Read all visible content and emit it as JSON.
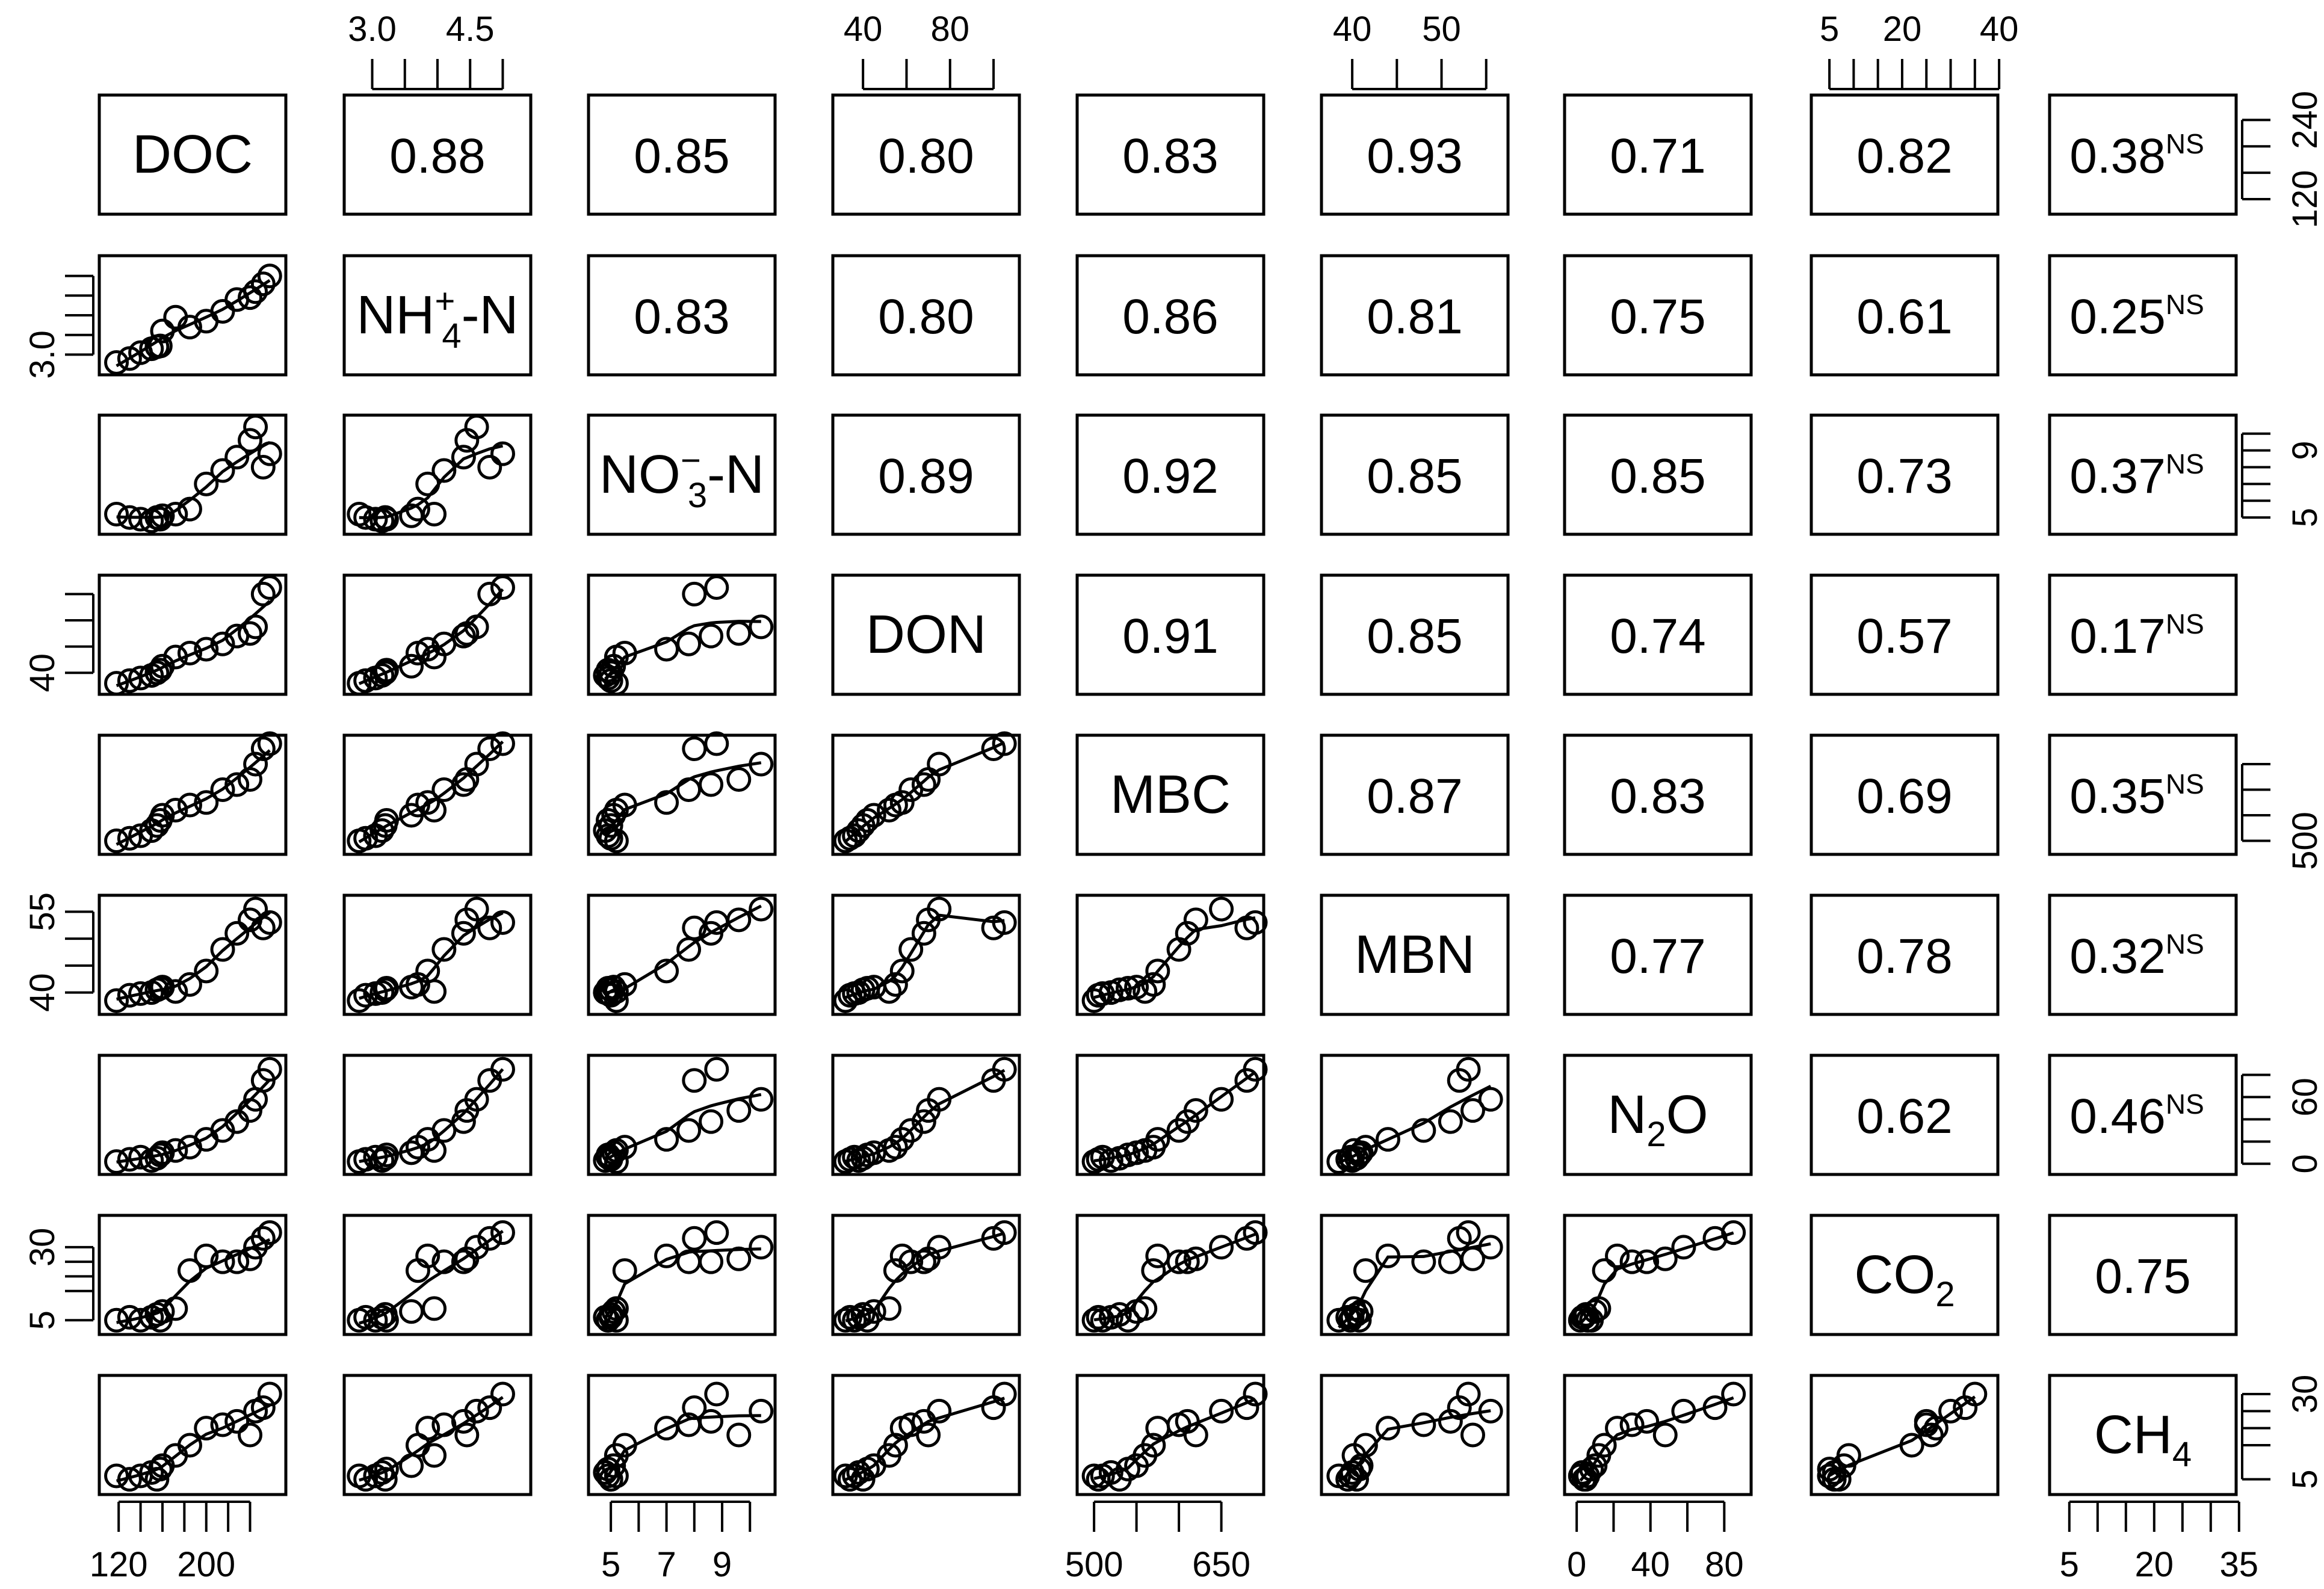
{
  "chart_data": {
    "type": "scatter",
    "variables": [
      {
        "name": "DOC",
        "base": "DOC",
        "sub": "",
        "sup": "",
        "suffix": ""
      },
      {
        "name": "NH4+-N",
        "base": "NH",
        "sub": "4",
        "sup": "+",
        "suffix": "-N"
      },
      {
        "name": "NO3−-N",
        "base": "NO",
        "sub": "3",
        "sup": "−",
        "suffix": "-N"
      },
      {
        "name": "DON",
        "base": "DON",
        "sub": "",
        "sup": "",
        "suffix": ""
      },
      {
        "name": "MBC",
        "base": "MBC",
        "sub": "",
        "sup": "",
        "suffix": ""
      },
      {
        "name": "MBN",
        "base": "MBN",
        "sub": "",
        "sup": "",
        "suffix": ""
      },
      {
        "name": "N2O",
        "base": "N",
        "sub": "2",
        "sup": "",
        "suffix": "O"
      },
      {
        "name": "CO2",
        "base": "CO",
        "sub": "2",
        "sup": "",
        "suffix": ""
      },
      {
        "name": "CH4",
        "base": "CH",
        "sub": "4",
        "sup": "",
        "suffix": ""
      }
    ],
    "ranges": [
      [
        110,
        265
      ],
      [
        2.7,
        5.3
      ],
      [
        4.5,
        10.6
      ],
      [
        30,
        108
      ],
      [
        490,
        690
      ],
      [
        37.5,
        56.5
      ],
      [
        -2,
        90
      ],
      [
        3,
        38
      ],
      [
        3,
        33
      ]
    ],
    "ticks": {
      "top": {
        "1": {
          "major": [
            3.0,
            4.5
          ],
          "minor": [
            3.5,
            4.0,
            5.0
          ],
          "labels": [
            "3.0",
            "4.5"
          ]
        },
        "3": {
          "major": [
            40,
            80
          ],
          "minor": [
            60,
            100
          ],
          "labels": [
            "40",
            "80"
          ]
        },
        "5": {
          "major": [
            40,
            50
          ],
          "minor": [
            45,
            55
          ],
          "labels": [
            "40",
            "50"
          ]
        },
        "7": {
          "major": [
            5,
            20,
            40
          ],
          "minor": [
            10,
            15,
            25,
            30,
            35
          ],
          "labels": [
            "5",
            "20",
            "40"
          ]
        }
      },
      "bottom": {
        "0": {
          "major": [
            120,
            200
          ],
          "minor": [
            140,
            160,
            180,
            220,
            240
          ],
          "labels": [
            "120",
            "200"
          ]
        },
        "2": {
          "major": [
            5,
            7,
            9
          ],
          "minor": [
            6,
            8,
            10
          ],
          "labels": [
            "5",
            "7",
            "9"
          ]
        },
        "4": {
          "major": [
            500,
            650
          ],
          "minor": [
            550,
            600
          ],
          "labels": [
            "500",
            "650"
          ]
        },
        "6": {
          "major": [
            0,
            40,
            80
          ],
          "minor": [
            20,
            60
          ],
          "labels": [
            "0",
            "40",
            "80"
          ]
        },
        "8": {
          "major": [
            5,
            20,
            35
          ],
          "minor": [
            10,
            15,
            25,
            30
          ],
          "labels": [
            "5",
            "20",
            "35"
          ]
        }
      },
      "left": {
        "1": {
          "major": [
            3.0
          ],
          "minor": [
            3.5,
            4.0,
            4.5,
            5.0
          ],
          "labels": [
            "3.0"
          ]
        },
        "3": {
          "major": [
            40
          ],
          "minor": [
            60,
            80,
            100
          ],
          "labels": [
            "40"
          ]
        },
        "5": {
          "major": [
            40,
            55
          ],
          "minor": [
            45,
            50
          ],
          "labels": [
            "40",
            "55"
          ]
        },
        "7": {
          "major": [
            5,
            30
          ],
          "minor": [
            15,
            20,
            25
          ],
          "labels": [
            "5",
            "30"
          ]
        }
      },
      "right": {
        "0": {
          "major": [
            120,
            240
          ],
          "minor": [
            160,
            200
          ],
          "labels": [
            "120",
            "240"
          ]
        },
        "2": {
          "major": [
            5,
            9
          ],
          "minor": [
            6,
            7,
            8,
            10
          ],
          "labels": [
            "5",
            "9"
          ]
        },
        "4": {
          "major": [
            500
          ],
          "minor": [
            550,
            600,
            650
          ],
          "labels": [
            "500"
          ]
        },
        "6": {
          "major": [
            0,
            60
          ],
          "minor": [
            20,
            40,
            80
          ],
          "labels": [
            "0",
            "60"
          ]
        },
        "8": {
          "major": [
            5,
            30
          ],
          "minor": [
            15,
            20,
            25
          ],
          "labels": [
            "5",
            "30"
          ]
        }
      }
    },
    "correlations": [
      {
        "row": 0,
        "col": 1,
        "r": "0.88",
        "ns": ""
      },
      {
        "row": 0,
        "col": 2,
        "r": "0.85",
        "ns": ""
      },
      {
        "row": 0,
        "col": 3,
        "r": "0.80",
        "ns": ""
      },
      {
        "row": 0,
        "col": 4,
        "r": "0.83",
        "ns": ""
      },
      {
        "row": 0,
        "col": 5,
        "r": "0.93",
        "ns": ""
      },
      {
        "row": 0,
        "col": 6,
        "r": "0.71",
        "ns": ""
      },
      {
        "row": 0,
        "col": 7,
        "r": "0.82",
        "ns": ""
      },
      {
        "row": 0,
        "col": 8,
        "r": "0.38",
        "ns": "NS"
      },
      {
        "row": 1,
        "col": 2,
        "r": "0.83",
        "ns": ""
      },
      {
        "row": 1,
        "col": 3,
        "r": "0.80",
        "ns": ""
      },
      {
        "row": 1,
        "col": 4,
        "r": "0.86",
        "ns": ""
      },
      {
        "row": 1,
        "col": 5,
        "r": "0.81",
        "ns": ""
      },
      {
        "row": 1,
        "col": 6,
        "r": "0.75",
        "ns": ""
      },
      {
        "row": 1,
        "col": 7,
        "r": "0.61",
        "ns": ""
      },
      {
        "row": 1,
        "col": 8,
        "r": "0.25",
        "ns": "NS"
      },
      {
        "row": 2,
        "col": 3,
        "r": "0.89",
        "ns": ""
      },
      {
        "row": 2,
        "col": 4,
        "r": "0.92",
        "ns": ""
      },
      {
        "row": 2,
        "col": 5,
        "r": "0.85",
        "ns": ""
      },
      {
        "row": 2,
        "col": 6,
        "r": "0.85",
        "ns": ""
      },
      {
        "row": 2,
        "col": 7,
        "r": "0.73",
        "ns": ""
      },
      {
        "row": 2,
        "col": 8,
        "r": "0.37",
        "ns": "NS"
      },
      {
        "row": 3,
        "col": 4,
        "r": "0.91",
        "ns": ""
      },
      {
        "row": 3,
        "col": 5,
        "r": "0.85",
        "ns": ""
      },
      {
        "row": 3,
        "col": 6,
        "r": "0.74",
        "ns": ""
      },
      {
        "row": 3,
        "col": 7,
        "r": "0.57",
        "ns": ""
      },
      {
        "row": 3,
        "col": 8,
        "r": "0.17",
        "ns": "NS"
      },
      {
        "row": 4,
        "col": 5,
        "r": "0.87",
        "ns": ""
      },
      {
        "row": 4,
        "col": 6,
        "r": "0.83",
        "ns": ""
      },
      {
        "row": 4,
        "col": 7,
        "r": "0.69",
        "ns": ""
      },
      {
        "row": 4,
        "col": 8,
        "r": "0.35",
        "ns": "NS"
      },
      {
        "row": 5,
        "col": 6,
        "r": "0.77",
        "ns": ""
      },
      {
        "row": 5,
        "col": 7,
        "r": "0.78",
        "ns": ""
      },
      {
        "row": 5,
        "col": 8,
        "r": "0.32",
        "ns": "NS"
      },
      {
        "row": 6,
        "col": 7,
        "r": "0.62",
        "ns": ""
      },
      {
        "row": 6,
        "col": 8,
        "r": "0.46",
        "ns": "NS"
      },
      {
        "row": 7,
        "col": 8,
        "r": "0.75",
        "ns": ""
      }
    ],
    "observations": {
      "DOC": [
        118,
        130,
        140,
        150,
        155,
        158,
        160,
        172,
        185,
        200,
        215,
        228,
        240,
        245,
        252,
        258
      ],
      "NH4+-N": [
        2.8,
        2.9,
        3.05,
        3.15,
        3.2,
        3.22,
        3.6,
        3.95,
        3.7,
        3.85,
        4.1,
        4.4,
        4.45,
        4.6,
        4.8,
        5.0
      ],
      "NO3−-N": [
        5.2,
        5.0,
        4.9,
        4.8,
        5.0,
        4.9,
        5.1,
        5.2,
        5.5,
        7.0,
        7.8,
        8.6,
        9.6,
        10.4,
        8.0,
        8.8
      ],
      "DON": [
        32,
        34,
        36,
        38,
        40,
        42,
        45,
        52,
        55,
        58,
        62,
        68,
        70,
        75,
        100,
        105
      ],
      "MBC": [
        500,
        505,
        510,
        520,
        530,
        540,
        550,
        560,
        570,
        575,
        600,
        610,
        620,
        650,
        680,
        690
      ],
      "MBN": [
        38.5,
        39.5,
        39.8,
        40.0,
        40.5,
        40.8,
        41.0,
        40.2,
        41.5,
        44.0,
        48.0,
        51.0,
        53.5,
        55.5,
        52.0,
        53.0
      ],
      "N2O": [
        2,
        4,
        6,
        3,
        5,
        8,
        10,
        12,
        15,
        22,
        30,
        38,
        48,
        58,
        75,
        85
      ],
      "CO2": [
        5,
        6,
        5,
        6,
        7,
        5,
        8,
        9,
        22,
        27,
        25,
        25,
        26,
        30,
        33,
        35
      ],
      "CH4": [
        6,
        5,
        6,
        7,
        5,
        8,
        9,
        12,
        15,
        20,
        21,
        22,
        18,
        25,
        26,
        30
      ]
    }
  }
}
